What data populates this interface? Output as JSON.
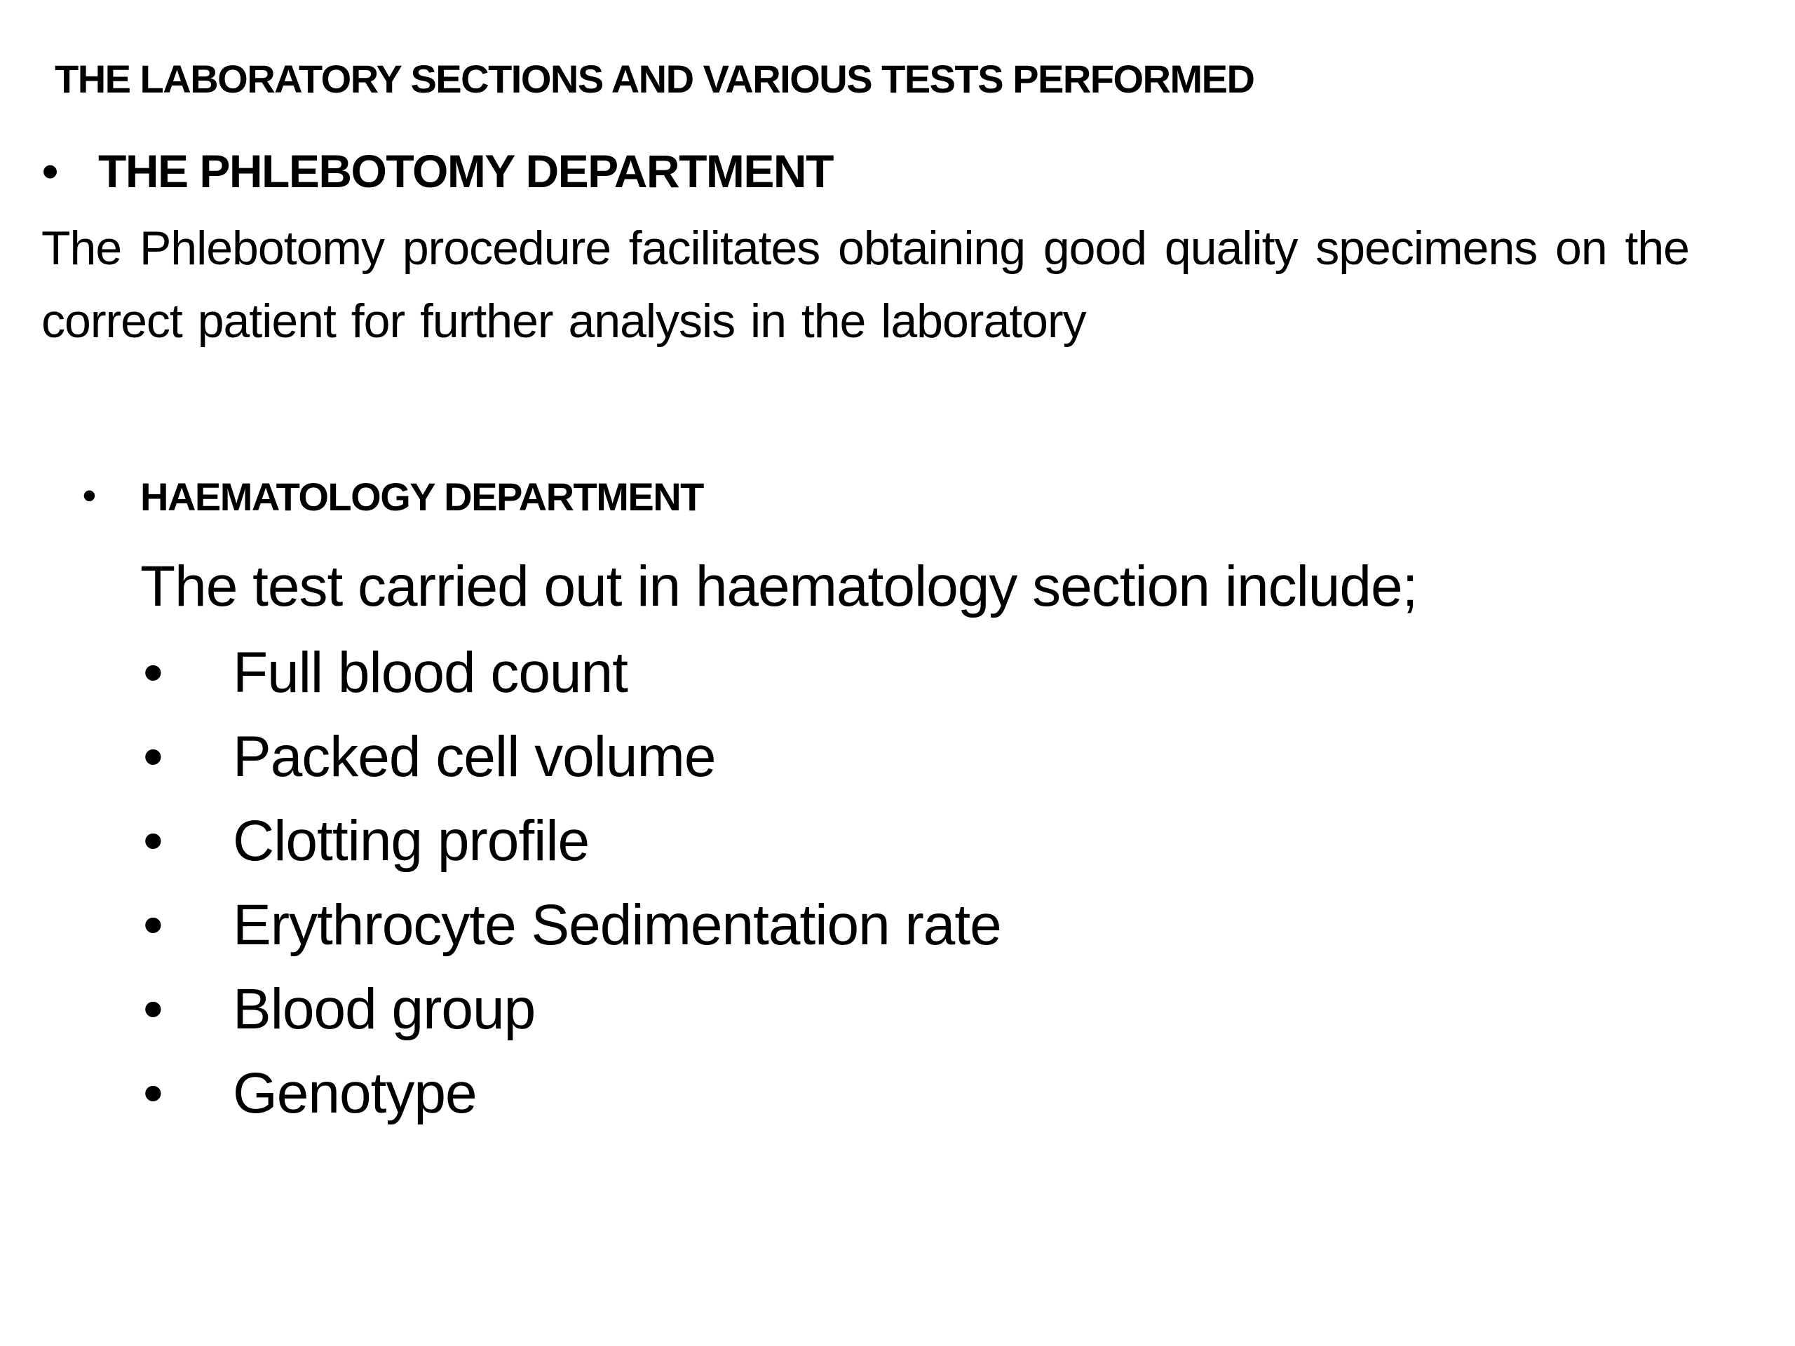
{
  "slide": {
    "title": "THE LABORATORY SECTIONS AND VARIOUS TESTS PERFORMED",
    "bullet_glyph": "•",
    "phlebotomy": {
      "heading": "THE PHLEBOTOMY DEPARTMENT",
      "text": "The Phlebotomy procedure facilitates obtaining good quality specimens on the correct patient for further analysis in the laboratory"
    },
    "haematology": {
      "heading": "HAEMATOLOGY DEPARTMENT",
      "intro": "The test carried out in haematology section include;",
      "tests": [
        "Full blood count",
        "Packed cell volume",
        "Clotting profile",
        "Erythrocyte Sedimentation rate",
        "Blood group",
        "Genotype"
      ]
    }
  }
}
